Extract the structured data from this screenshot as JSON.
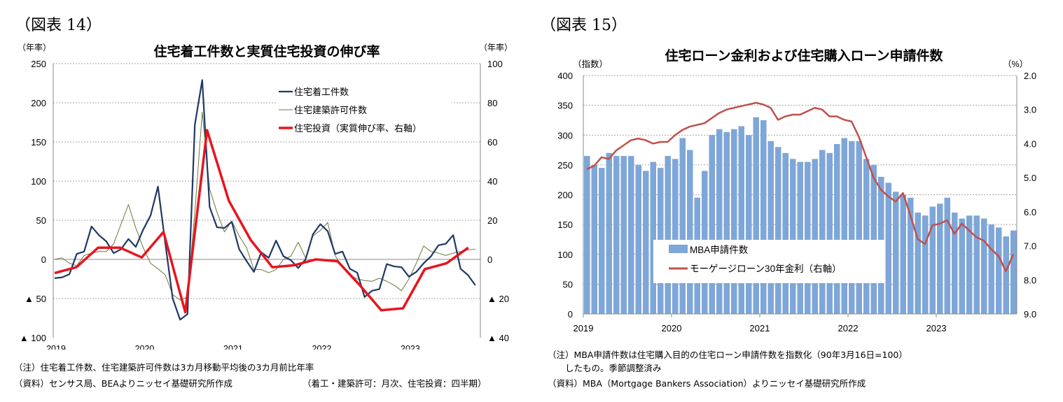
{
  "figures": [
    {
      "label": "（図表 14）",
      "notes": [
        "（注）住宅着工件数、住宅建築許可件数は3カ月移動平均後の3カ月前比年率",
        "（資料）センサス局、BEAよりニッセイ基礎研究所作成"
      ],
      "frequency_note": "（着工・建築許可：月次、住宅投資：四半期）"
    },
    {
      "label": "（図表 15）",
      "notes": [
        "（注）MBA申請件数は住宅購入目的の住宅ローン申請件数を指数化（90年3月16日=100）",
        "　　したもの。季節調整済み",
        "（資料）MBA（Mortgage Bankers Association）よりニッセイ基礎研究所作成"
      ]
    }
  ],
  "chart_data": [
    {
      "type": "line",
      "title": "住宅着工件数と実質住宅投資の伸び率",
      "ylabel": "（年率）",
      "y2label": "（年率）",
      "ylim": [
        -100,
        250
      ],
      "y2lim": [
        -40,
        100
      ],
      "yticks": [
        250,
        200,
        150,
        100,
        50,
        0,
        -50,
        -100
      ],
      "ytick_labels": [
        "250",
        "200",
        "150",
        "100",
        "50",
        "0",
        "▲ 50",
        "▲ 100"
      ],
      "y2ticks": [
        100,
        80,
        60,
        40,
        20,
        0,
        -20,
        -40
      ],
      "y2tick_labels": [
        "100",
        "80",
        "60",
        "40",
        "20",
        "0",
        "▲ 20",
        "▲ 40"
      ],
      "xtick_labels": [
        "2019",
        "2020",
        "2021",
        "2022",
        "2023"
      ],
      "grid": true,
      "legend_placement": "top-right",
      "x_start": "2019-01",
      "series": [
        {
          "name": "住宅着工件数",
          "axis": "left",
          "frequency": "monthly",
          "color": "#1f3864",
          "values": [
            -24,
            -23,
            -19,
            7,
            10,
            42,
            31,
            23,
            8,
            13,
            26,
            16,
            38,
            56,
            93,
            20,
            -50,
            -77,
            -70,
            172,
            229,
            67,
            41,
            40,
            48,
            13,
            -2,
            -16,
            9,
            2,
            24,
            4,
            -1,
            -11,
            0,
            32,
            45,
            36,
            7,
            10,
            -12,
            -17,
            -48,
            -40,
            -38,
            -6,
            -9,
            -10,
            -22,
            -16,
            -5,
            4,
            18,
            20,
            31,
            -12,
            -20,
            -33
          ]
        },
        {
          "name": "住宅建築許可件数",
          "axis": "left",
          "frequency": "monthly",
          "color": "#6b7a3c",
          "values": [
            0,
            2,
            -5,
            -8,
            5,
            8,
            10,
            10,
            20,
            45,
            70,
            40,
            15,
            -5,
            -12,
            -20,
            -45,
            -52,
            -48,
            60,
            188,
            90,
            60,
            35,
            49,
            30,
            15,
            -13,
            -13,
            -17,
            -13,
            0,
            4,
            22,
            2,
            30,
            37,
            47,
            5,
            -10,
            -20,
            -25,
            -27,
            -28,
            -24,
            -28,
            -33,
            -40,
            -25,
            -5,
            17,
            10,
            8,
            5,
            8,
            10,
            12,
            13
          ]
        },
        {
          "name": "住宅投資（実質伸び率、右軸）",
          "axis": "right",
          "frequency": "quarterly",
          "color": "#e8141e",
          "values": [
            -7,
            -4,
            6,
            6,
            1,
            14,
            -27,
            66,
            30,
            10,
            -4,
            -3,
            0,
            -1,
            -13,
            -26,
            -25,
            -5,
            -2,
            6
          ]
        }
      ]
    },
    {
      "type": "bar+line",
      "title": "住宅ローン金利および住宅購入ローン申請件数",
      "ylabel": "（指数）",
      "y2label": "（%）",
      "ylim": [
        0,
        400
      ],
      "y2lim": [
        9.0,
        2.0
      ],
      "y2_inverted": true,
      "yticks": [
        400,
        350,
        300,
        250,
        200,
        150,
        100,
        50,
        0
      ],
      "ytick_labels": [
        "400",
        "350",
        "300",
        "250",
        "200",
        "150",
        "100",
        "50",
        "0"
      ],
      "y2ticks": [
        2,
        3,
        4,
        5,
        6,
        7,
        8,
        9
      ],
      "y2tick_labels": [
        "2.0",
        "3.0",
        "4.0",
        "5.0",
        "6.0",
        "7.0",
        "8.0",
        "9.0"
      ],
      "xtick_labels": [
        "2019",
        "2020",
        "2021",
        "2022",
        "2023"
      ],
      "grid": true,
      "legend_placement": "bottom-center",
      "x_start": "2019-01",
      "series": [
        {
          "name": "MBA申請件数",
          "kind": "bar",
          "axis": "left",
          "color": "#7ea6d8",
          "values": [
            265,
            250,
            245,
            270,
            265,
            265,
            265,
            250,
            240,
            255,
            245,
            265,
            260,
            295,
            275,
            195,
            240,
            300,
            310,
            305,
            310,
            315,
            300,
            330,
            325,
            290,
            280,
            270,
            260,
            255,
            255,
            260,
            275,
            270,
            285,
            295,
            290,
            290,
            260,
            250,
            230,
            220,
            205,
            200,
            195,
            170,
            165,
            180,
            185,
            195,
            170,
            160,
            165,
            165,
            160,
            150,
            145,
            130,
            140
          ]
        },
        {
          "name": "モーゲージローン30年金利（右軸）",
          "kind": "line",
          "axis": "right",
          "color": "#c0504d",
          "values": [
            4.75,
            4.65,
            4.4,
            4.45,
            4.2,
            4.05,
            3.9,
            3.85,
            3.9,
            4.0,
            3.95,
            3.95,
            3.75,
            3.6,
            3.5,
            3.45,
            3.4,
            3.25,
            3.1,
            3.0,
            2.95,
            2.9,
            2.85,
            2.8,
            2.85,
            2.95,
            3.3,
            3.2,
            3.15,
            3.15,
            3.05,
            2.95,
            3.0,
            3.2,
            3.2,
            3.3,
            3.35,
            3.8,
            4.4,
            5.0,
            5.35,
            5.55,
            5.7,
            5.45,
            6.1,
            6.8,
            6.95,
            6.4,
            6.35,
            6.25,
            6.65,
            6.35,
            6.55,
            6.75,
            6.85,
            7.1,
            7.3,
            7.75,
            7.25
          ]
        }
      ]
    }
  ]
}
